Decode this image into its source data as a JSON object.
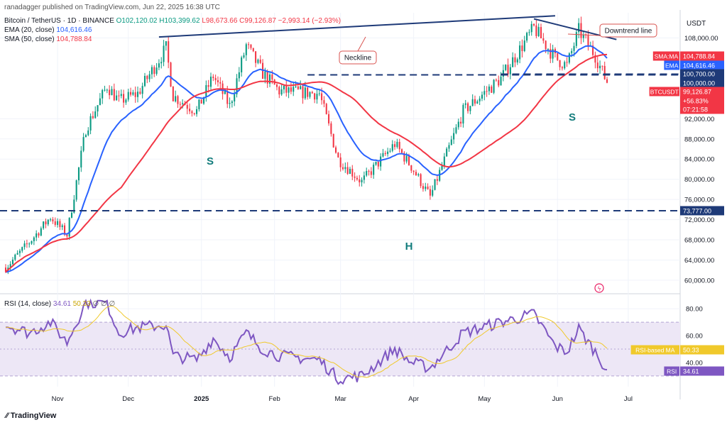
{
  "header": {
    "publisher": "ranadagger published on TradingView.com, Jun 22, 2025 16:38 UTC",
    "symbol_line": "Bitcoin / TetherUS · 1D · BINANCE",
    "ohlc": {
      "o": "O102,120.02",
      "h": "H103,399.62",
      "l": "L98,673.66",
      "c": "C99,126.87",
      "chg": "−2,993.14 (−2.93%)"
    },
    "ema_label": "EMA (20, close)",
    "ema_value": "104,616.46",
    "sma_label": "SMA (50, close)",
    "sma_value": "104,788.84",
    "rsi_label": "RSI (14, close)",
    "rsi_value": "34.61",
    "rsi_ma_value": "50.33",
    "rsi_extra": "∅ ∅ ∅"
  },
  "currency": "USDT",
  "footer": "TradingView",
  "colors": {
    "up": "#089981",
    "down": "#f23645",
    "ema": "#2962ff",
    "sma": "#f23645",
    "rsi": "#7e57c2",
    "rsi_ma": "#f0c92b",
    "rsi_band": "#ede7f6",
    "pattern": "#1e3a78",
    "annot_border": "#d9534f",
    "label_dark": "#1e3a78"
  },
  "annotations": [
    {
      "text": "Neckline"
    },
    {
      "text": "Downtrend line"
    },
    {
      "text": "S"
    },
    {
      "text": "H"
    },
    {
      "text": "S"
    }
  ],
  "price_labels": [
    {
      "tag": "SMA:MA",
      "value": "104,788.84",
      "color": "#f23645"
    },
    {
      "tag": "EMA",
      "value": "104,616.46",
      "color": "#2962ff"
    },
    {
      "tag": "",
      "value": "100,700.00",
      "color": "#1e3a78"
    },
    {
      "tag": "",
      "value": "100,000.00",
      "color": "#1e3a78"
    },
    {
      "tag": "BTCUSDT",
      "value": "99,126.87",
      "color": "#f23645"
    },
    {
      "tag": "",
      "value": "+56.83%",
      "color": "#f23645"
    },
    {
      "tag": "",
      "value": "07:21:58",
      "color": "#f23645"
    },
    {
      "tag": "",
      "value": "73,777.00",
      "color": "#1e3a78"
    }
  ],
  "rsi_labels": [
    {
      "tag": "RSI-based MA",
      "value": "50.33",
      "color": "#f0c92b"
    },
    {
      "tag": "RSI",
      "value": "34.61",
      "color": "#7e57c2"
    }
  ],
  "chart_data": [
    {
      "type": "candlestick",
      "title": "Bitcoin / TetherUS · 1D · BINANCE",
      "y_ticks": [
        60000,
        64000,
        68000,
        72000,
        76000,
        80000,
        84000,
        88000,
        92000,
        108000
      ],
      "y_tick_labels": [
        "60,000.00",
        "64,000.00",
        "68,000.00",
        "72,000.00",
        "76,000.00",
        "80,000.00",
        "84,000.00",
        "88,000.00",
        "92,000.00",
        "108,000.00"
      ],
      "ylim": [
        57600,
        113000
      ],
      "x_labels": [
        "Nov",
        "Dec",
        "2025",
        "Feb",
        "Mar",
        "Apr",
        "May",
        "Jun",
        "Jul"
      ],
      "price_path_anchors": [
        [
          "2024-10-10",
          62500
        ],
        [
          "2024-10-20",
          67500
        ],
        [
          "2024-10-29",
          72500
        ],
        [
          "2024-11-05",
          69000
        ],
        [
          "2024-11-13",
          90000
        ],
        [
          "2024-11-22",
          98500
        ],
        [
          "2024-11-27",
          95500
        ],
        [
          "2024-12-05",
          97000
        ],
        [
          "2024-12-17",
          106000
        ],
        [
          "2024-12-20",
          96500
        ],
        [
          "2024-12-30",
          93500
        ],
        [
          "2025-01-06",
          100500
        ],
        [
          "2025-01-13",
          94500
        ],
        [
          "2025-01-20",
          106500
        ],
        [
          "2025-01-27",
          101000
        ],
        [
          "2025-02-03",
          97500
        ],
        [
          "2025-02-20",
          97000
        ],
        [
          "2025-02-28",
          84000
        ],
        [
          "2025-03-10",
          79500
        ],
        [
          "2025-03-24",
          87000
        ],
        [
          "2025-03-31",
          82500
        ],
        [
          "2025-04-08",
          76500
        ],
        [
          "2025-04-22",
          93500
        ],
        [
          "2025-05-08",
          100000
        ],
        [
          "2025-05-22",
          110000
        ],
        [
          "2025-05-31",
          104000
        ],
        [
          "2025-06-05",
          102500
        ],
        [
          "2025-06-10",
          109500
        ],
        [
          "2025-06-17",
          104500
        ],
        [
          "2025-06-22",
          99126
        ]
      ],
      "series": [
        {
          "name": "EMA (20, close)",
          "last": 104616.46
        },
        {
          "name": "SMA (50, close)",
          "last": 104788.84
        }
      ],
      "levels": [
        100700,
        100000,
        73777
      ],
      "neckline": [
        [
          "2024-12-14",
          108200
        ],
        [
          "2025-05-31",
          112400
        ]
      ],
      "downtrend_line": [
        [
          "2025-05-22",
          111800
        ],
        [
          "2025-06-26",
          107700
        ]
      ]
    },
    {
      "type": "line",
      "title": "RSI (14, close)",
      "y_ticks": [
        40,
        60,
        80
      ],
      "y_tick_labels": [
        "40.00",
        "60.00",
        "80.00"
      ],
      "ylim": [
        22,
        88
      ],
      "band": [
        30,
        70
      ],
      "series": [
        {
          "name": "RSI",
          "last": 34.61,
          "anchors": [
            [
              "2024-10-10",
              68
            ],
            [
              "2024-10-20",
              62
            ],
            [
              "2024-10-29",
              70
            ],
            [
              "2024-11-05",
              55
            ],
            [
              "2024-11-13",
              85
            ],
            [
              "2024-11-22",
              84
            ],
            [
              "2024-11-27",
              62
            ],
            [
              "2024-12-05",
              66
            ],
            [
              "2024-12-17",
              68
            ],
            [
              "2024-12-20",
              45
            ],
            [
              "2024-12-30",
              42
            ],
            [
              "2025-01-06",
              58
            ],
            [
              "2025-01-13",
              44
            ],
            [
              "2025-01-20",
              62
            ],
            [
              "2025-01-27",
              50
            ],
            [
              "2025-02-03",
              45
            ],
            [
              "2025-02-20",
              42
            ],
            [
              "2025-02-28",
              28
            ],
            [
              "2025-03-10",
              30
            ],
            [
              "2025-03-24",
              50
            ],
            [
              "2025-03-31",
              40
            ],
            [
              "2025-04-08",
              36
            ],
            [
              "2025-04-22",
              62
            ],
            [
              "2025-05-08",
              70
            ],
            [
              "2025-05-22",
              76
            ],
            [
              "2025-05-31",
              52
            ],
            [
              "2025-06-05",
              48
            ],
            [
              "2025-06-10",
              65
            ],
            [
              "2025-06-17",
              48
            ],
            [
              "2025-06-22",
              34.61
            ]
          ]
        },
        {
          "name": "RSI-based MA",
          "last": 50.33
        }
      ]
    }
  ]
}
